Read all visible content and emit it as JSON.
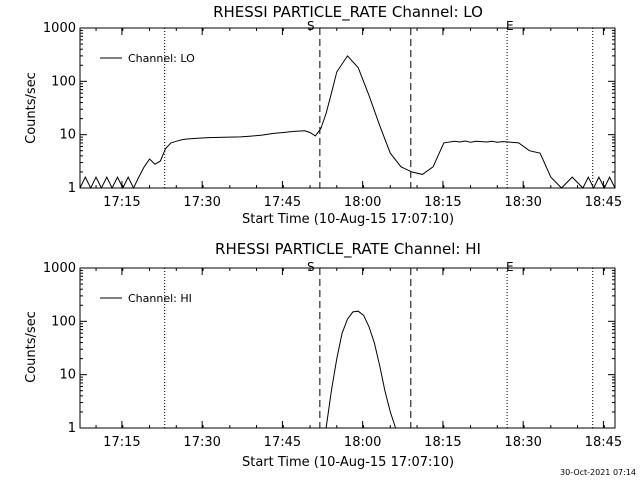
{
  "chart_data": [
    {
      "type": "line",
      "title": "RHESSI PARTICLE_RATE Channel: LO",
      "xlabel": "Start Time (10-Aug-15 17:07:10)",
      "ylabel": "Counts/sec",
      "yscale": "log",
      "ylim": [
        1,
        1000
      ],
      "xlim_minutes": [
        0,
        100
      ],
      "x_ticks": [
        "17:15",
        "17:30",
        "17:45",
        "18:00",
        "18:15",
        "18:30",
        "18:45"
      ],
      "y_ticks": [
        "1",
        "10",
        "100",
        "1000"
      ],
      "legend": "Channel: LO",
      "legend_position": "top-left",
      "vlines_dotted": [
        "17:23",
        "18:27",
        "18:43"
      ],
      "vlines_dashed": [
        "17:52",
        "18:09"
      ],
      "markers": [
        "S",
        "E"
      ],
      "series": [
        {
          "name": "Channel: LO",
          "x_minutes": [
            0,
            1,
            2,
            3,
            4,
            5,
            6,
            7,
            8,
            9,
            10,
            11,
            12,
            13,
            14,
            15,
            16,
            17,
            18,
            19,
            20,
            22,
            24,
            26,
            28,
            30,
            32,
            34,
            36,
            38,
            40,
            42,
            43,
            44,
            45,
            46,
            47,
            48,
            50,
            52,
            54,
            56,
            58,
            60,
            62,
            64,
            66,
            68,
            70,
            71,
            72,
            73,
            74,
            75,
            76,
            77,
            78,
            79,
            80,
            82,
            84,
            86,
            88,
            90,
            92,
            94,
            95,
            96,
            97,
            98,
            99,
            100
          ],
          "values": [
            1.0,
            1.6,
            1.0,
            1.6,
            1.0,
            1.6,
            1.0,
            1.6,
            1.0,
            1.6,
            1.0,
            1.6,
            2.5,
            3.5,
            2.8,
            3.2,
            5.5,
            7.0,
            7.5,
            8.0,
            8.3,
            8.6,
            8.8,
            8.9,
            9.0,
            9.1,
            9.4,
            9.8,
            10.5,
            11.0,
            11.5,
            11.8,
            11.0,
            9.5,
            13.0,
            25.0,
            60.0,
            150.0,
            300.0,
            180.0,
            55.0,
            15.0,
            4.5,
            2.5,
            2.0,
            1.8,
            2.5,
            7.0,
            7.5,
            7.3,
            7.6,
            7.2,
            7.5,
            7.4,
            7.3,
            7.5,
            7.2,
            7.4,
            7.3,
            7.0,
            5.0,
            4.5,
            1.6,
            1.0,
            1.6,
            1.0,
            1.6,
            1.0,
            1.6,
            1.0,
            1.6,
            1.0
          ]
        }
      ]
    },
    {
      "type": "line",
      "title": "RHESSI PARTICLE_RATE Channel: HI",
      "xlabel": "Start Time (10-Aug-15 17:07:10)",
      "ylabel": "Counts/sec",
      "yscale": "log",
      "ylim": [
        1,
        1000
      ],
      "xlim_minutes": [
        0,
        100
      ],
      "x_ticks": [
        "17:15",
        "17:30",
        "17:45",
        "18:00",
        "18:15",
        "18:30",
        "18:45"
      ],
      "y_ticks": [
        "1",
        "10",
        "100",
        "1000"
      ],
      "legend": "Channel: HI",
      "legend_position": "top-left",
      "vlines_dotted": [
        "17:23",
        "18:27",
        "18:43"
      ],
      "vlines_dashed": [
        "17:52",
        "18:09"
      ],
      "markers": [
        "S",
        "E"
      ],
      "series": [
        {
          "name": "Channel: HI",
          "x_minutes": [
            46,
            47,
            48,
            49,
            50,
            51,
            52,
            53,
            54,
            55,
            56,
            57,
            58,
            59
          ],
          "values": [
            1.0,
            5.0,
            20.0,
            60.0,
            110.0,
            150.0,
            155.0,
            130.0,
            80.0,
            40.0,
            15.0,
            5.0,
            2.0,
            1.0
          ]
        }
      ]
    }
  ],
  "footer": {
    "timestamp": "30-Oct-2021 07:14"
  },
  "colors": {
    "line": "#000000",
    "background": "#ffffff"
  }
}
